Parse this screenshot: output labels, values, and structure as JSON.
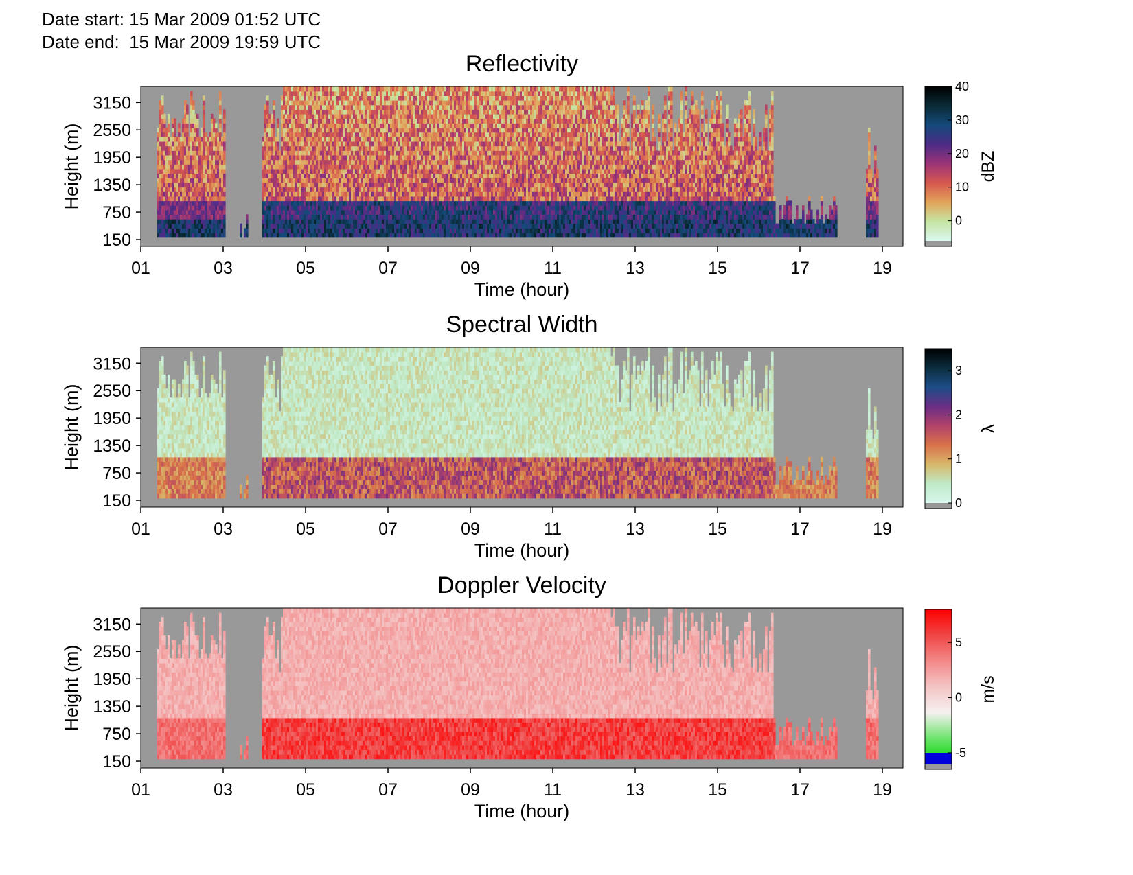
{
  "header": {
    "start_label": "Date start:",
    "start_value": "15 Mar 2009 01:52 UTC",
    "end_label": "Date end:",
    "end_value": "15 Mar 2009 19:59 UTC"
  },
  "chart_data": [
    {
      "type": "heatmap",
      "title": "Reflectivity",
      "xlabel": "Time (hour)",
      "ylabel": "Height (m)",
      "x_ticks": [
        "01",
        "03",
        "05",
        "07",
        "09",
        "11",
        "13",
        "15",
        "17",
        "19"
      ],
      "y_ticks": [
        "3150",
        "2550",
        "1950",
        "1350",
        "750",
        "150"
      ],
      "xlim": [
        1,
        19.5
      ],
      "ylim": [
        0,
        3500
      ],
      "colorbar": {
        "label": "dBZ",
        "ticks": [
          "40",
          "30",
          "20",
          "10",
          "0"
        ],
        "range": [
          -6,
          40
        ],
        "colors": [
          "#d9f7ee",
          "#c6e5a4",
          "#e2a45a",
          "#d6584f",
          "#9c3478",
          "#4b2b86",
          "#144a7a",
          "#0a2a36",
          "#000000"
        ]
      },
      "no_data_color": "#999999"
    },
    {
      "type": "heatmap",
      "title": "Spectral Width",
      "xlabel": "Time (hour)",
      "ylabel": "Height (m)",
      "x_ticks": [
        "01",
        "03",
        "05",
        "07",
        "09",
        "11",
        "13",
        "15",
        "17",
        "19"
      ],
      "y_ticks": [
        "3150",
        "2550",
        "1950",
        "1350",
        "750",
        "150"
      ],
      "xlim": [
        1,
        19.5
      ],
      "ylim": [
        0,
        3500
      ],
      "colorbar": {
        "label": "λ",
        "ticks": [
          "3",
          "2",
          "1",
          "0"
        ],
        "range": [
          0,
          3.5
        ],
        "colors": [
          "#d9f7ee",
          "#bfe9c6",
          "#d7b86a",
          "#d9724a",
          "#b2426a",
          "#6a2e85",
          "#1d4d86",
          "#0b2d3e",
          "#000000"
        ]
      },
      "no_data_color": "#999999"
    },
    {
      "type": "heatmap",
      "title": "Doppler Velocity",
      "xlabel": "Time (hour)",
      "ylabel": "Height (m)",
      "x_ticks": [
        "01",
        "03",
        "05",
        "07",
        "09",
        "11",
        "13",
        "15",
        "17",
        "19"
      ],
      "y_ticks": [
        "3150",
        "2550",
        "1950",
        "1350",
        "750",
        "150"
      ],
      "xlim": [
        1,
        19.5
      ],
      "ylim": [
        0,
        3500
      ],
      "colorbar": {
        "label": "m/s",
        "ticks": [
          "5",
          "0",
          "-5"
        ],
        "range": [
          -6,
          8
        ],
        "colors": [
          "#00d400",
          "#6fe46f",
          "#f6f0f0",
          "#f4c4c4",
          "#f38888",
          "#f04545",
          "#ff0000"
        ]
      },
      "no_data_color": "#999999"
    }
  ]
}
